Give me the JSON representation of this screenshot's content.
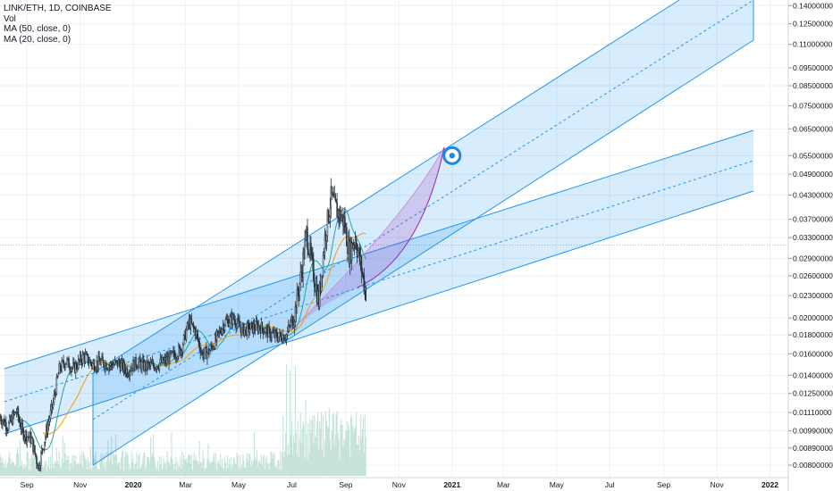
{
  "legend": {
    "symbol": "LINK/ETH, 1D, COINBASE",
    "vol": "Vol",
    "ma50": "MA (50, close, 0)",
    "ma20": "MA (20, close, 0)"
  },
  "colors": {
    "background": "#ffffff",
    "candle": "#26313a",
    "channel_line": "#2196f3",
    "channel_fill": "#bbdefb",
    "curve_fill": "#ce93d8",
    "curve_line": "#9c27b0",
    "ma50": "#ff9800",
    "ma20": "#26a69a",
    "volume": "#b7dccf",
    "target_ring": "#1e88e5",
    "grid": "#eef0f3"
  },
  "chart_data": {
    "type": "candlestick",
    "scale": "log",
    "x_range": [
      "2019-08-01",
      "2022-01-20"
    ],
    "y_range": [
      0.0074,
      0.145
    ],
    "price_ticks": [
      "0.14000000",
      "0.12500000",
      "0.11000000",
      "0.09500000",
      "0.08500000",
      "0.07500000",
      "0.06500000",
      "0.05500000",
      "0.04900000",
      "0.04300000",
      "0.03700000",
      "0.03300000",
      "0.02900000",
      "0.02600000",
      "0.02300000",
      "0.02000000",
      "0.01800000",
      "0.01600000",
      "0.01400000",
      "0.01250000",
      "0.01110000",
      "0.00990000",
      "0.00890000",
      "0.00800000"
    ],
    "time_ticks": [
      {
        "label": "Sep",
        "date": "2019-09-01",
        "year": false
      },
      {
        "label": "Nov",
        "date": "2019-11-01",
        "year": false
      },
      {
        "label": "2020",
        "date": "2020-01-01",
        "year": true
      },
      {
        "label": "Mar",
        "date": "2020-03-01",
        "year": false
      },
      {
        "label": "May",
        "date": "2020-05-01",
        "year": false
      },
      {
        "label": "Jul",
        "date": "2020-07-01",
        "year": false
      },
      {
        "label": "Sep",
        "date": "2020-09-01",
        "year": false
      },
      {
        "label": "Nov",
        "date": "2020-11-01",
        "year": false
      },
      {
        "label": "2021",
        "date": "2021-01-01",
        "year": true
      },
      {
        "label": "Mar",
        "date": "2021-03-01",
        "year": false
      },
      {
        "label": "May",
        "date": "2021-05-01",
        "year": false
      },
      {
        "label": "Jul",
        "date": "2021-07-01",
        "year": false
      },
      {
        "label": "Sep",
        "date": "2021-09-01",
        "year": false
      },
      {
        "label": "Nov",
        "date": "2021-11-01",
        "year": false
      },
      {
        "label": "2022",
        "date": "2022-01-01",
        "year": true
      }
    ],
    "price_path": [
      {
        "date": "2019-08-01",
        "close": 0.0108
      },
      {
        "date": "2019-08-10",
        "close": 0.0102
      },
      {
        "date": "2019-08-20",
        "close": 0.0112
      },
      {
        "date": "2019-08-27",
        "close": 0.0098
      },
      {
        "date": "2019-09-06",
        "close": 0.0094
      },
      {
        "date": "2019-09-14",
        "close": 0.0079
      },
      {
        "date": "2019-09-22",
        "close": 0.0096
      },
      {
        "date": "2019-10-01",
        "close": 0.0118
      },
      {
        "date": "2019-10-08",
        "close": 0.0145
      },
      {
        "date": "2019-10-15",
        "close": 0.0153
      },
      {
        "date": "2019-10-25",
        "close": 0.0146
      },
      {
        "date": "2019-11-05",
        "close": 0.0158
      },
      {
        "date": "2019-11-15",
        "close": 0.015
      },
      {
        "date": "2019-11-25",
        "close": 0.0152
      },
      {
        "date": "2019-12-05",
        "close": 0.0149
      },
      {
        "date": "2019-12-15",
        "close": 0.0151
      },
      {
        "date": "2019-12-25",
        "close": 0.0144
      },
      {
        "date": "2020-01-05",
        "close": 0.0152
      },
      {
        "date": "2020-01-15",
        "close": 0.0148
      },
      {
        "date": "2020-01-25",
        "close": 0.0149
      },
      {
        "date": "2020-02-05",
        "close": 0.0152
      },
      {
        "date": "2020-02-15",
        "close": 0.0158
      },
      {
        "date": "2020-02-25",
        "close": 0.0165
      },
      {
        "date": "2020-03-05",
        "close": 0.0195
      },
      {
        "date": "2020-03-12",
        "close": 0.0185
      },
      {
        "date": "2020-03-20",
        "close": 0.016
      },
      {
        "date": "2020-03-28",
        "close": 0.0162
      },
      {
        "date": "2020-04-05",
        "close": 0.0175
      },
      {
        "date": "2020-04-15",
        "close": 0.0195
      },
      {
        "date": "2020-04-25",
        "close": 0.02
      },
      {
        "date": "2020-05-05",
        "close": 0.0185
      },
      {
        "date": "2020-05-15",
        "close": 0.0188
      },
      {
        "date": "2020-05-25",
        "close": 0.019
      },
      {
        "date": "2020-06-05",
        "close": 0.0182
      },
      {
        "date": "2020-06-15",
        "close": 0.0178
      },
      {
        "date": "2020-06-25",
        "close": 0.018
      },
      {
        "date": "2020-07-05",
        "close": 0.021
      },
      {
        "date": "2020-07-12",
        "close": 0.0265
      },
      {
        "date": "2020-07-18",
        "close": 0.034
      },
      {
        "date": "2020-07-24",
        "close": 0.028
      },
      {
        "date": "2020-08-01",
        "close": 0.0222
      },
      {
        "date": "2020-08-08",
        "close": 0.033
      },
      {
        "date": "2020-08-15",
        "close": 0.0425
      },
      {
        "date": "2020-08-22",
        "close": 0.039
      },
      {
        "date": "2020-08-30",
        "close": 0.0365
      },
      {
        "date": "2020-09-05",
        "close": 0.03
      },
      {
        "date": "2020-09-12",
        "close": 0.033
      },
      {
        "date": "2020-09-18",
        "close": 0.028
      },
      {
        "date": "2020-09-24",
        "close": 0.0235
      }
    ],
    "target": {
      "date": "2021-01-01",
      "price": 0.055
    }
  }
}
